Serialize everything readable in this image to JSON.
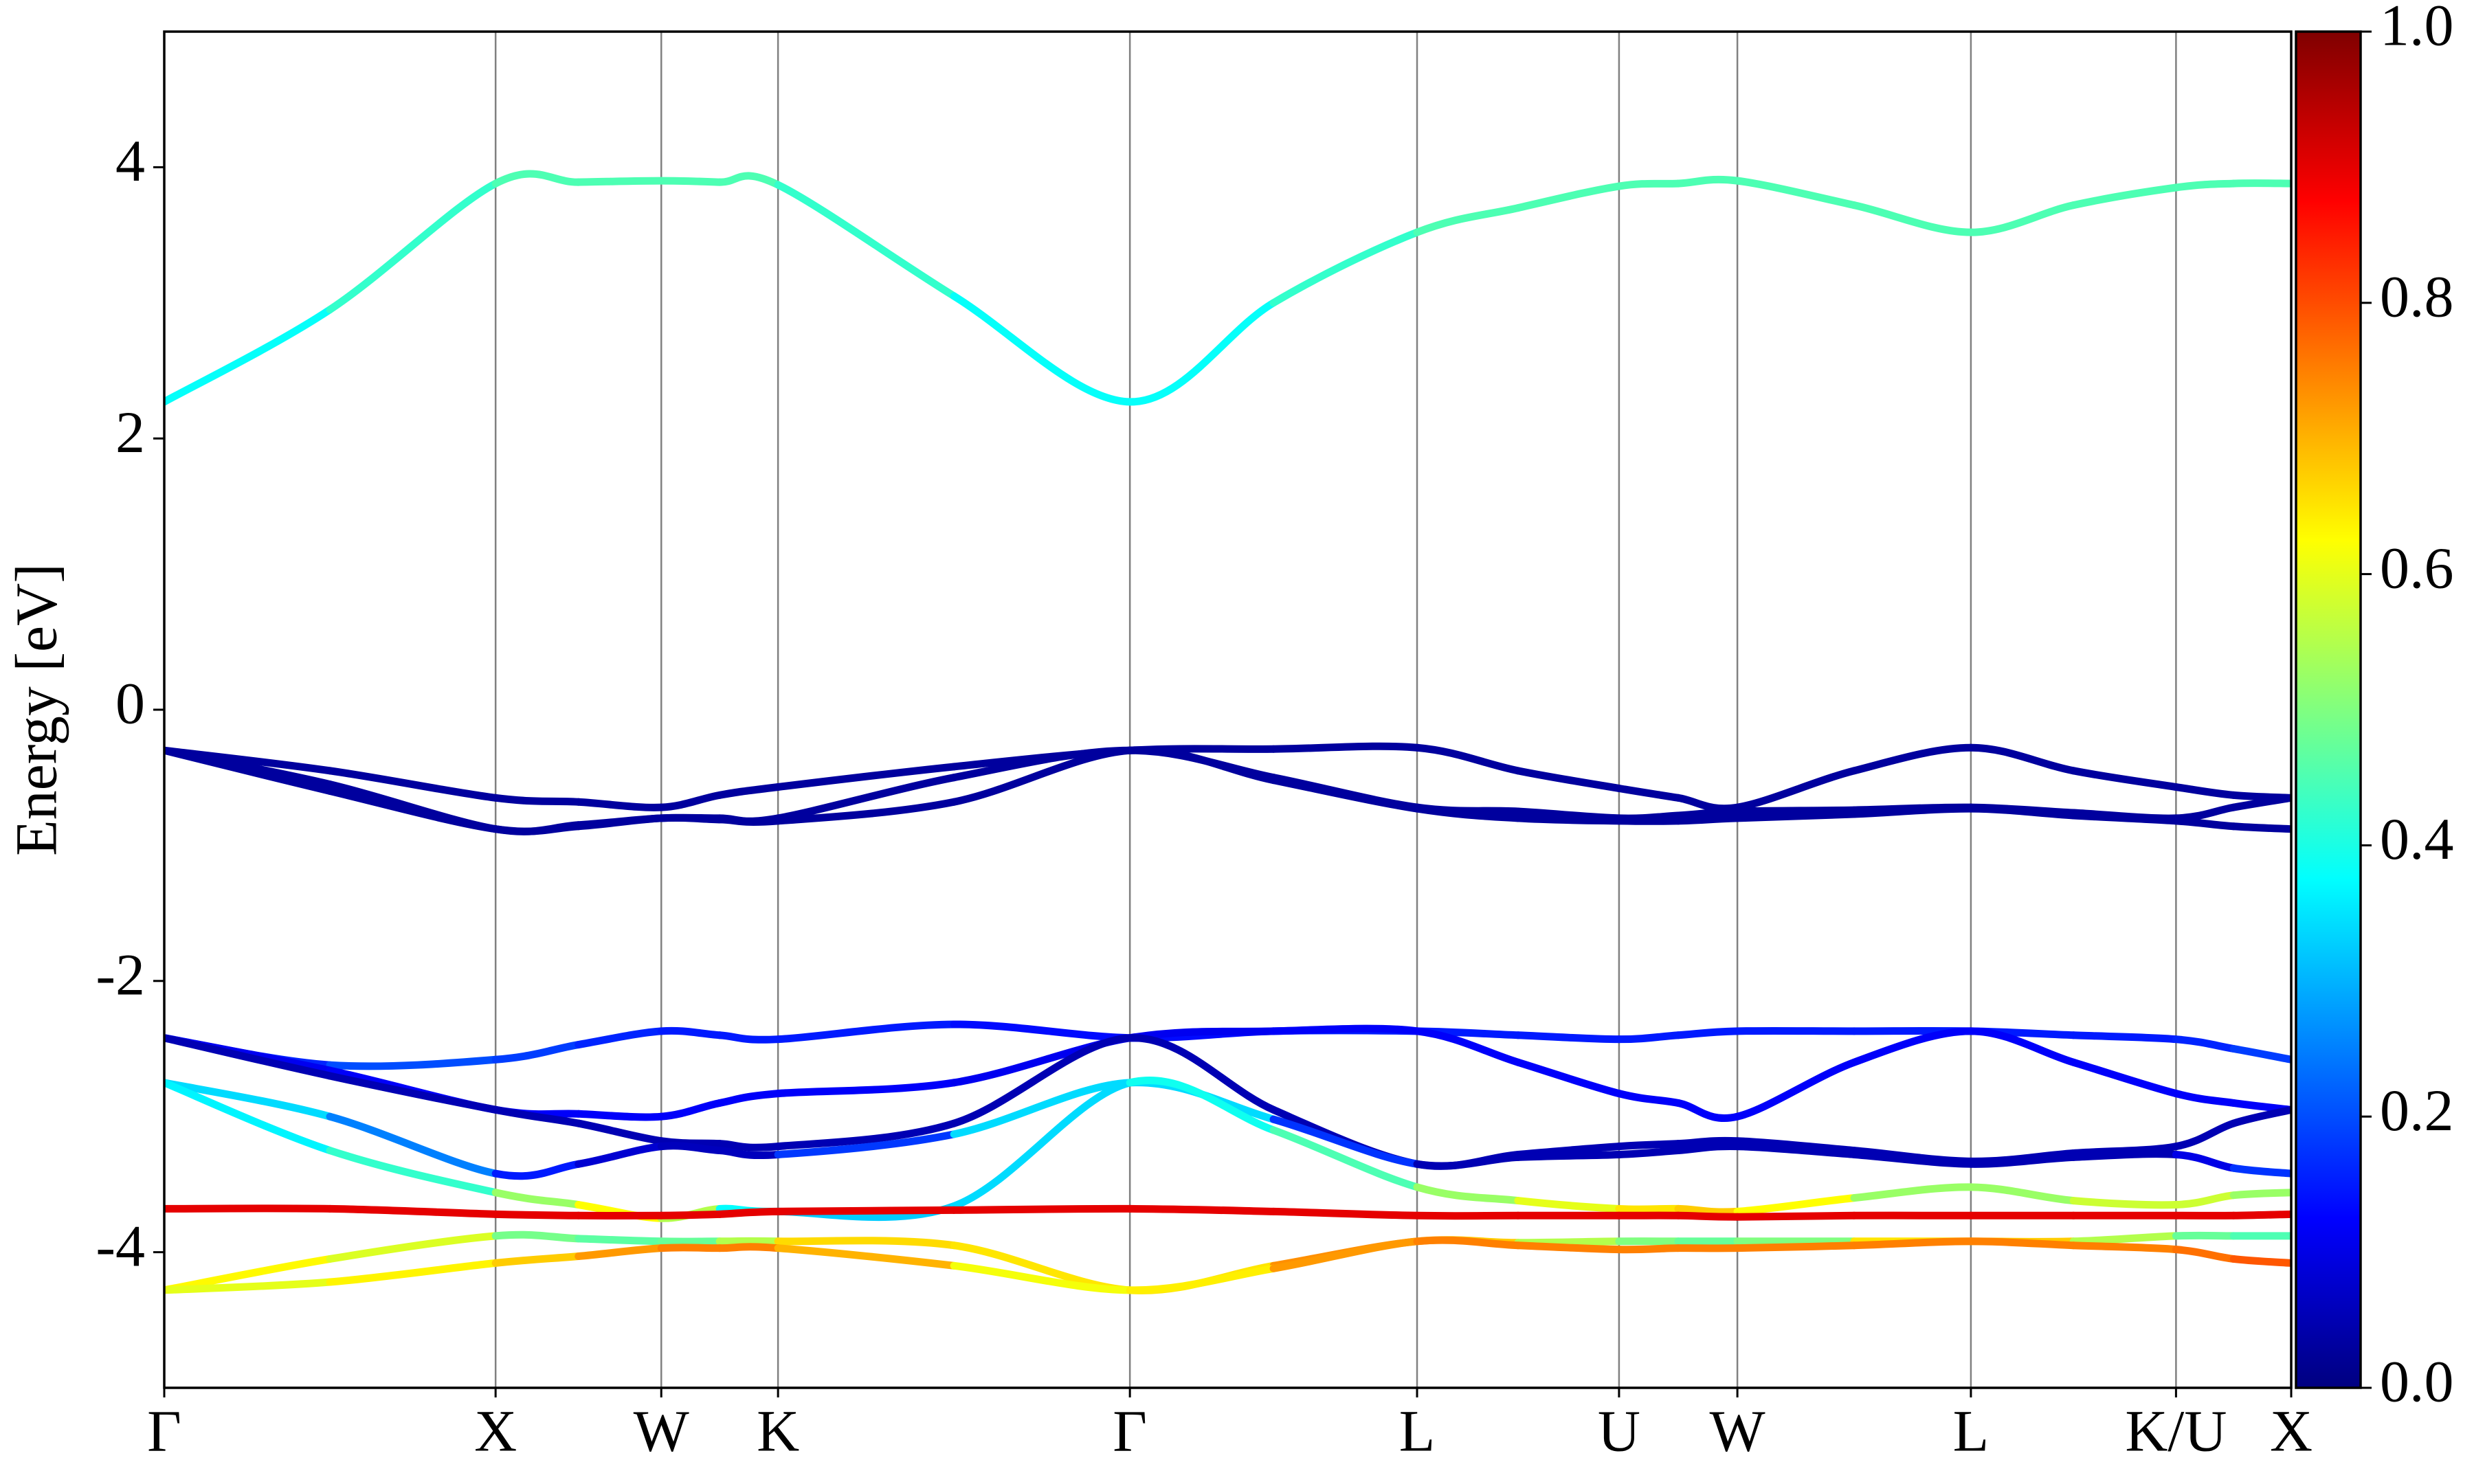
{
  "chart_data": {
    "type": "line",
    "ylabel": "Energy [eV]",
    "ylim": [
      -5,
      5
    ],
    "yticks": [
      -4,
      -2,
      0,
      2,
      4
    ],
    "xlim": [
      0,
      13.48
    ],
    "xticks": [
      {
        "value": 0,
        "label": "Γ"
      },
      {
        "value": 2.1,
        "label": "X"
      },
      {
        "value": 3.15,
        "label": "W"
      },
      {
        "value": 3.89,
        "label": "K"
      },
      {
        "value": 6.12,
        "label": "Γ"
      },
      {
        "value": 7.94,
        "label": "L"
      },
      {
        "value": 9.22,
        "label": "U"
      },
      {
        "value": 9.97,
        "label": "W"
      },
      {
        "value": 11.45,
        "label": "L"
      },
      {
        "value": 12.75,
        "label": "K/U"
      },
      {
        "value": 13.48,
        "label": "X"
      }
    ],
    "grid": true,
    "colormap": "jet",
    "colorbar": {
      "lim": [
        0,
        1
      ],
      "ticks": [
        {
          "value": 0,
          "label": "0.0"
        },
        0.2,
        0.4,
        0.6,
        0.8,
        {
          "value": 1,
          "label": "1.0"
        }
      ]
    },
    "x": [
      0,
      1.05,
      2.1,
      2.625,
      3.15,
      3.52,
      3.89,
      5.005,
      6.12,
      7.03,
      7.94,
      8.58,
      9.22,
      9.595,
      9.97,
      10.71,
      11.45,
      12.1,
      12.75,
      13.115,
      13.48
    ],
    "series": [
      {
        "values": [
          2.27,
          2.95,
          3.88,
          3.89,
          3.9,
          3.89,
          3.87,
          3.05,
          2.27,
          3.0,
          3.52,
          3.7,
          3.86,
          3.88,
          3.9,
          3.72,
          3.52,
          3.72,
          3.85,
          3.88,
          3.88
        ],
        "weights": [
          0.36,
          0.4,
          0.45,
          0.45,
          0.45,
          0.45,
          0.45,
          0.4,
          0.36,
          0.4,
          0.45,
          0.45,
          0.45,
          0.45,
          0.45,
          0.45,
          0.45,
          0.45,
          0.45,
          0.45,
          0.45
        ]
      },
      {
        "values": [
          -0.3,
          -0.45,
          -0.65,
          -0.68,
          -0.72,
          -0.63,
          -0.57,
          -0.42,
          -0.3,
          -0.29,
          -0.28,
          -0.45,
          -0.58,
          -0.65,
          -0.72,
          -0.45,
          -0.28,
          -0.45,
          -0.57,
          -0.63,
          -0.65
        ],
        "weights": [
          0.03,
          0.03,
          0.03,
          0.03,
          0.03,
          0.03,
          0.03,
          0.03,
          0.03,
          0.03,
          0.03,
          0.03,
          0.03,
          0.03,
          0.03,
          0.03,
          0.03,
          0.03,
          0.03,
          0.03,
          0.03
        ]
      },
      {
        "values": [
          -0.3,
          -0.55,
          -0.88,
          -0.85,
          -0.8,
          -0.8,
          -0.8,
          -0.5,
          -0.3,
          -0.5,
          -0.72,
          -0.75,
          -0.8,
          -0.78,
          -0.75,
          -0.74,
          -0.72,
          -0.76,
          -0.8,
          -0.72,
          -0.65
        ],
        "weights": [
          0.03,
          0.03,
          0.03,
          0.03,
          0.03,
          0.03,
          0.03,
          0.03,
          0.03,
          0.03,
          0.03,
          0.03,
          0.03,
          0.03,
          0.03,
          0.03,
          0.03,
          0.03,
          0.03,
          0.03,
          0.03
        ]
      },
      {
        "values": [
          -0.3,
          -0.6,
          -0.88,
          -0.86,
          -0.8,
          -0.81,
          -0.82,
          -0.68,
          -0.3,
          -0.52,
          -0.73,
          -0.8,
          -0.82,
          -0.82,
          -0.8,
          -0.77,
          -0.73,
          -0.78,
          -0.82,
          -0.86,
          -0.88
        ],
        "weights": [
          0.03,
          0.03,
          0.03,
          0.03,
          0.03,
          0.03,
          0.03,
          0.03,
          0.03,
          0.03,
          0.03,
          0.03,
          0.03,
          0.03,
          0.03,
          0.03,
          0.03,
          0.03,
          0.03,
          0.03,
          0.03
        ]
      },
      {
        "values": [
          -2.42,
          -2.62,
          -2.58,
          -2.47,
          -2.37,
          -2.4,
          -2.43,
          -2.32,
          -2.42,
          -2.37,
          -2.37,
          -2.4,
          -2.43,
          -2.4,
          -2.37,
          -2.37,
          -2.37,
          -2.4,
          -2.43,
          -2.5,
          -2.58
        ],
        "weights": [
          0.12,
          0.2,
          0.2,
          0.17,
          0.15,
          0.15,
          0.15,
          0.15,
          0.12,
          0.15,
          0.15,
          0.15,
          0.15,
          0.15,
          0.15,
          0.15,
          0.15,
          0.15,
          0.15,
          0.17,
          0.2
        ]
      },
      {
        "values": [
          -2.42,
          -2.66,
          -2.95,
          -2.98,
          -3.0,
          -2.9,
          -2.83,
          -2.75,
          -2.42,
          -2.37,
          -2.37,
          -2.6,
          -2.83,
          -2.9,
          -3.0,
          -2.6,
          -2.37,
          -2.6,
          -2.83,
          -2.9,
          -2.95
        ],
        "weights": [
          0.1,
          0.12,
          0.12,
          0.12,
          0.12,
          0.12,
          0.12,
          0.12,
          0.1,
          0.12,
          0.12,
          0.12,
          0.12,
          0.12,
          0.12,
          0.12,
          0.12,
          0.12,
          0.12,
          0.12,
          0.12
        ]
      },
      {
        "values": [
          -2.42,
          -2.7,
          -2.95,
          -3.05,
          -3.18,
          -3.2,
          -3.22,
          -3.05,
          -2.42,
          -2.95,
          -3.35,
          -3.28,
          -3.22,
          -3.2,
          -3.18,
          -3.25,
          -3.33,
          -3.27,
          -3.22,
          -3.05,
          -2.95
        ],
        "weights": [
          0.05,
          0.05,
          0.05,
          0.05,
          0.05,
          0.05,
          0.05,
          0.05,
          0.05,
          0.05,
          0.05,
          0.05,
          0.05,
          0.05,
          0.05,
          0.05,
          0.05,
          0.05,
          0.05,
          0.05,
          0.05
        ]
      },
      {
        "values": [
          -2.75,
          -3.0,
          -3.42,
          -3.35,
          -3.22,
          -3.25,
          -3.28,
          -3.13,
          -2.75,
          -3.02,
          -3.35,
          -3.3,
          -3.28,
          -3.25,
          -3.22,
          -3.28,
          -3.35,
          -3.3,
          -3.28,
          -3.38,
          -3.42
        ],
        "weights": [
          0.38,
          0.3,
          0.2,
          0.1,
          0.06,
          0.06,
          0.06,
          0.3,
          0.38,
          0.3,
          0.05,
          0.05,
          0.05,
          0.05,
          0.05,
          0.05,
          0.05,
          0.05,
          0.05,
          0.15,
          0.2
        ]
      },
      {
        "values": [
          -4.28,
          -4.05,
          -3.88,
          -3.9,
          -3.92,
          -3.92,
          -3.92,
          -3.95,
          -4.28,
          -4.1,
          -3.92,
          -3.93,
          -3.92,
          -3.92,
          -3.92,
          -3.92,
          -3.92,
          -3.92,
          -3.88,
          -3.88,
          -3.88
        ],
        "weights": [
          0.58,
          0.68,
          0.5,
          0.48,
          0.45,
          0.5,
          0.6,
          0.72,
          0.58,
          0.72,
          0.75,
          0.6,
          0.5,
          0.5,
          0.45,
          0.55,
          0.75,
          0.6,
          0.5,
          0.45,
          0.45
        ]
      },
      {
        "values": [
          -4.28,
          -4.22,
          -4.08,
          -4.03,
          -3.97,
          -3.97,
          -3.97,
          -4.1,
          -4.28,
          -4.12,
          -3.92,
          -3.95,
          -3.98,
          -3.97,
          -3.97,
          -3.95,
          -3.92,
          -3.95,
          -3.98,
          -4.05,
          -4.08
        ],
        "weights": [
          0.58,
          0.62,
          0.65,
          0.7,
          0.75,
          0.75,
          0.75,
          0.65,
          0.58,
          0.7,
          0.75,
          0.75,
          0.75,
          0.75,
          0.75,
          0.75,
          0.75,
          0.75,
          0.75,
          0.78,
          0.8
        ]
      },
      {
        "values": [
          -2.75,
          -3.25,
          -3.56,
          -3.65,
          -3.75,
          -3.68,
          -3.7,
          -3.66,
          -2.75,
          -3.1,
          -3.52,
          -3.62,
          -3.68,
          -3.68,
          -3.7,
          -3.6,
          -3.52,
          -3.62,
          -3.65,
          -3.58,
          -3.56
        ],
        "weights": [
          0.38,
          0.35,
          0.5,
          0.55,
          0.7,
          0.4,
          0.35,
          0.3,
          0.38,
          0.4,
          0.5,
          0.55,
          0.65,
          0.65,
          0.7,
          0.55,
          0.5,
          0.55,
          0.6,
          0.55,
          0.5
        ]
      },
      {
        "values": [
          -3.68,
          -3.68,
          -3.72,
          -3.73,
          -3.73,
          -3.72,
          -3.7,
          -3.69,
          -3.68,
          -3.7,
          -3.73,
          -3.73,
          -3.73,
          -3.73,
          -3.74,
          -3.73,
          -3.73,
          -3.73,
          -3.73,
          -3.73,
          -3.72
        ],
        "weights": [
          0.9,
          0.9,
          0.9,
          0.9,
          0.9,
          0.9,
          0.9,
          0.9,
          0.9,
          0.9,
          0.9,
          0.9,
          0.9,
          0.9,
          0.9,
          0.9,
          0.9,
          0.9,
          0.9,
          0.9,
          0.9
        ]
      }
    ]
  }
}
